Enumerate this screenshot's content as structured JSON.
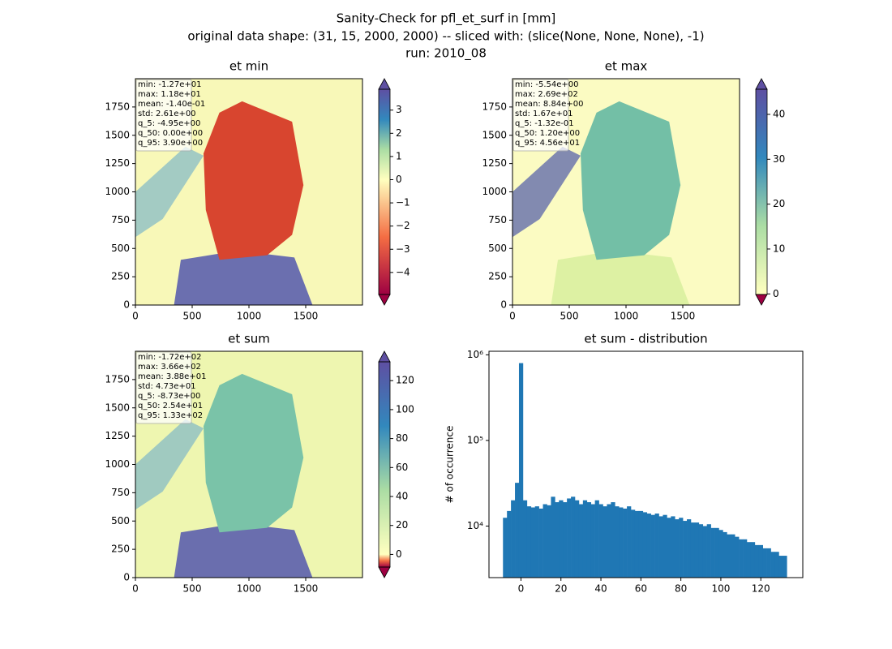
{
  "suptitle": [
    "Sanity-Check for pfl_et_surf in [mm]",
    "original data shape: (31, 15, 2000, 2000) -- sliced with: (slice(None, None, None), -1)",
    "run: 2010_08"
  ],
  "chart_data": [
    {
      "type": "heatmap",
      "title": "et min",
      "xlim": [
        0,
        2000
      ],
      "ylim": [
        0,
        2000
      ],
      "xticks": [
        0,
        500,
        1000,
        1500
      ],
      "yticks": [
        0,
        250,
        500,
        750,
        1000,
        1250,
        1500,
        1750
      ],
      "clim": [
        -4.95,
        3.9
      ],
      "cticks": [
        {
          "value": -4,
          "label": "−4"
        },
        {
          "value": -3,
          "label": "−3"
        },
        {
          "value": -2,
          "label": "−2"
        },
        {
          "value": -1,
          "label": "−1"
        },
        0,
        1,
        2,
        3
      ],
      "stats": [
        "min: -1.27e+01",
        "max: 1.18e+01",
        "mean: -1.40e-01",
        "std: 2.61e+00",
        "q_5: -4.95e+00",
        "q_50: 0.00e+00",
        "q_95: 3.90e+00"
      ],
      "colormap": [
        "#9e0142",
        "#f46d43",
        "#ffffbf",
        "#abdda4",
        "#3288bd",
        "#5e4fa2"
      ]
    },
    {
      "type": "heatmap",
      "title": "et max",
      "xlim": [
        0,
        2000
      ],
      "ylim": [
        0,
        2000
      ],
      "xticks": [
        0,
        500,
        1000,
        1500
      ],
      "yticks": [
        0,
        250,
        500,
        750,
        1000,
        1250,
        1500,
        1750
      ],
      "clim": [
        -0.132,
        45.6
      ],
      "cticks": [
        0,
        10,
        20,
        30,
        40
      ],
      "stats": [
        "min: -5.54e+00",
        "max: 2.69e+02",
        "mean: 8.84e+00",
        "std: 1.67e+01",
        "q_5: -1.32e-01",
        "q_50: 1.20e+00",
        "q_95: 4.56e+01"
      ],
      "colormap": [
        "#9e0142",
        "#f46d43",
        "#ffffbf",
        "#abdda4",
        "#3288bd",
        "#5e4fa2"
      ]
    },
    {
      "type": "heatmap",
      "title": "et sum",
      "xlim": [
        0,
        2000
      ],
      "ylim": [
        0,
        2000
      ],
      "xticks": [
        0,
        500,
        1000,
        1500
      ],
      "yticks": [
        0,
        250,
        500,
        750,
        1000,
        1250,
        1500,
        1750
      ],
      "clim": [
        -8.73,
        133
      ],
      "cticks": [
        0,
        20,
        40,
        60,
        80,
        100,
        120
      ],
      "stats": [
        "min: -1.72e+02",
        "max: 3.66e+02",
        "mean: 3.88e+01",
        "std: 4.73e+01",
        "q_5: -8.73e+00",
        "q_50: 2.54e+01",
        "q_95: 1.33e+02"
      ],
      "colormap": [
        "#9e0142",
        "#f46d43",
        "#ffffbf",
        "#abdda4",
        "#3288bd",
        "#5e4fa2"
      ]
    },
    {
      "type": "histogram",
      "title": "et sum - distribution",
      "y_label": "# of occurrence",
      "color": "#1f77b4",
      "log": true,
      "xlim": [
        -16,
        141
      ],
      "ylim": [
        2500,
        1100000
      ],
      "xticks": [
        0,
        20,
        40,
        60,
        80,
        100,
        120
      ],
      "yticks": [
        {
          "value": 10000,
          "label": "10⁴"
        },
        {
          "value": 100000,
          "label": "10⁵"
        },
        {
          "value": 1000000,
          "label": "10⁶"
        }
      ],
      "bins": [
        -9,
        -7,
        -5,
        -3,
        -1,
        1,
        3,
        5,
        7,
        9,
        11,
        13,
        15,
        17,
        19,
        21,
        23,
        25,
        27,
        29,
        31,
        33,
        35,
        37,
        39,
        41,
        43,
        45,
        47,
        49,
        51,
        53,
        55,
        57,
        59,
        61,
        63,
        65,
        67,
        69,
        71,
        73,
        75,
        77,
        79,
        81,
        83,
        85,
        87,
        89,
        91,
        93,
        95,
        97,
        99,
        101,
        103,
        105,
        107,
        109,
        111,
        113,
        115,
        117,
        119,
        121,
        123,
        125,
        127,
        129,
        131,
        133
      ],
      "values": [
        12500,
        15000,
        20000,
        32000,
        800000,
        20000,
        17000,
        16500,
        17000,
        16000,
        18000,
        17500,
        22000,
        19000,
        20000,
        19000,
        21000,
        22000,
        20000,
        18000,
        20000,
        19000,
        18000,
        20000,
        18000,
        17000,
        18000,
        19000,
        17000,
        16500,
        16000,
        17000,
        15500,
        15000,
        15000,
        14500,
        14000,
        13500,
        14000,
        13000,
        13500,
        12500,
        13000,
        12000,
        12500,
        11500,
        12000,
        11000,
        11000,
        10500,
        10000,
        10500,
        9500,
        9500,
        9000,
        8500,
        8000,
        8000,
        7500,
        7000,
        7000,
        6500,
        6500,
        6000,
        6000,
        5500,
        5500,
        5000,
        5000,
        4500,
        4500
      ]
    }
  ]
}
